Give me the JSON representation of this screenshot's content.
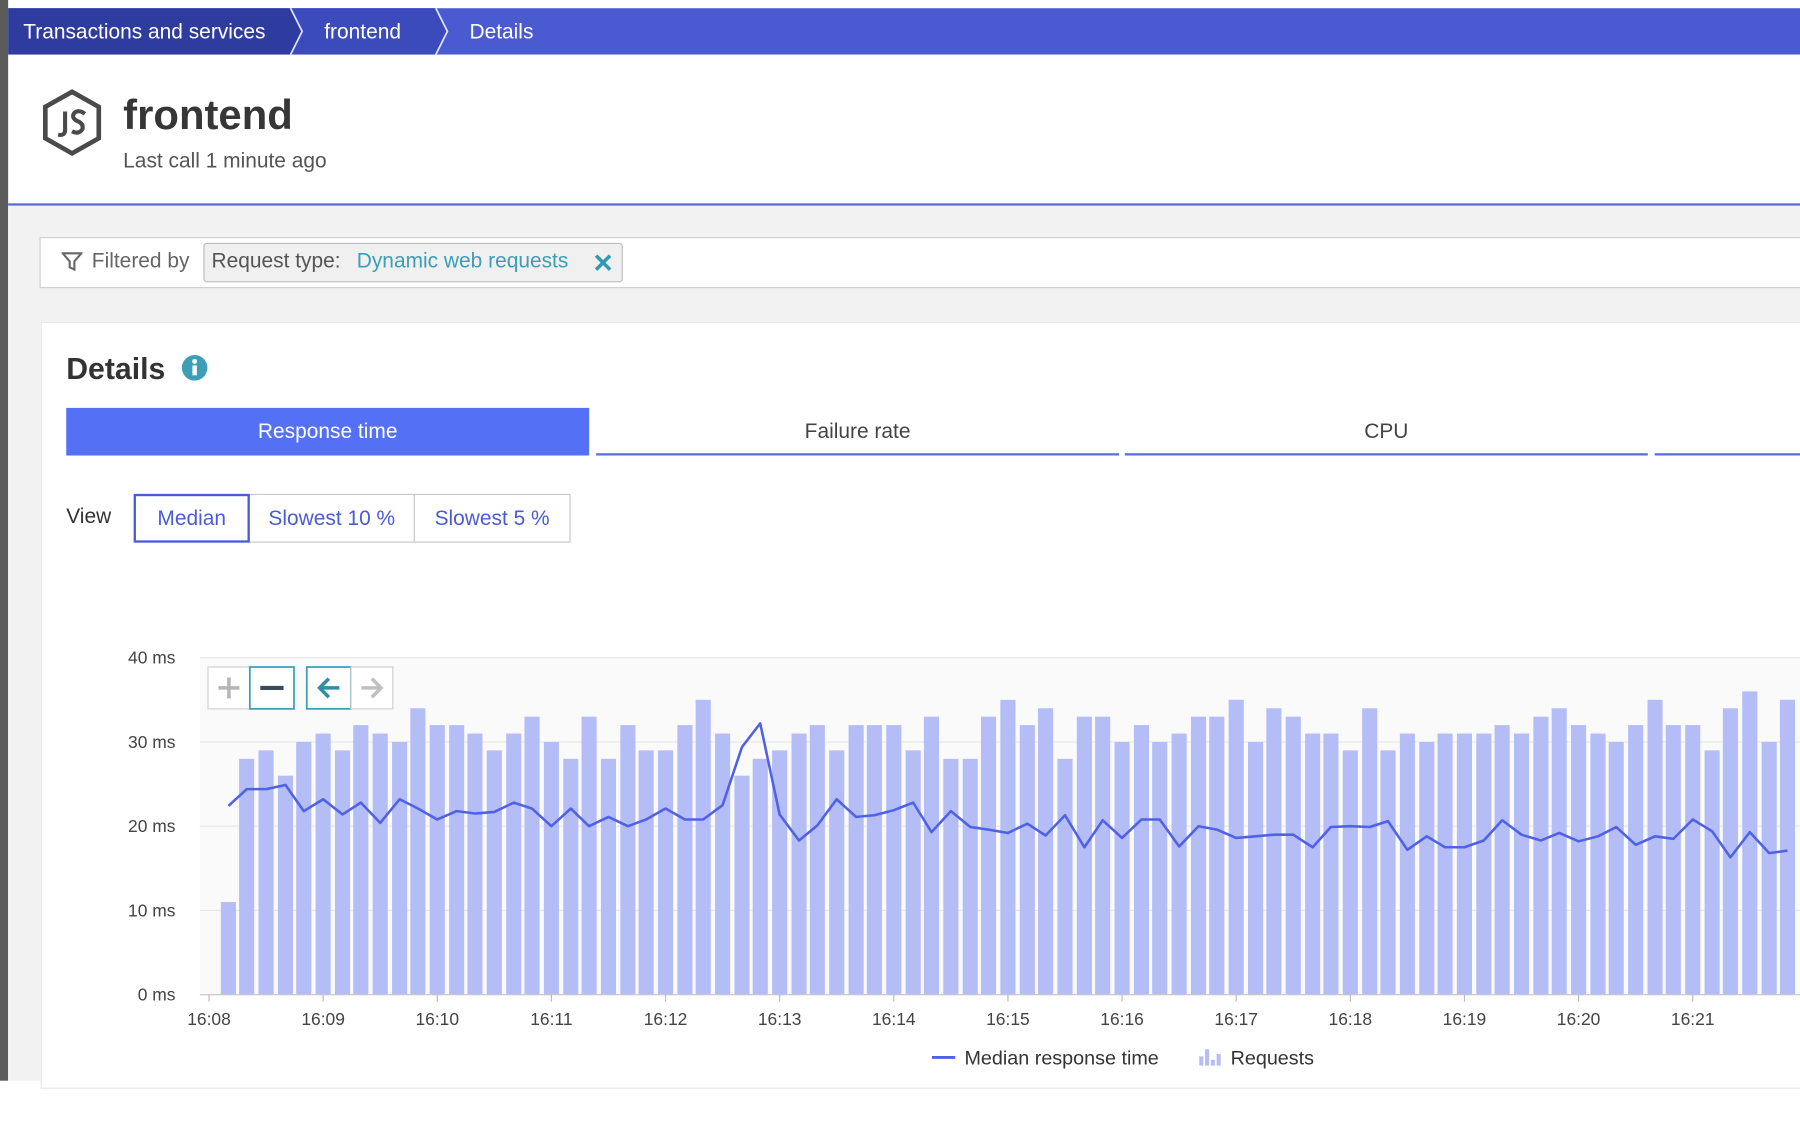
{
  "breadcrumb": [
    "Transactions and services",
    "frontend",
    "Details"
  ],
  "header": {
    "title": "frontend",
    "subtitle": "Last call 1 minute ago"
  },
  "filter": {
    "label": "Filtered by",
    "key": "Request type:",
    "value": "Dynamic web requests"
  },
  "details": {
    "title": "Details",
    "tabs": [
      "Response time",
      "Failure rate",
      "CPU"
    ],
    "view_label": "View",
    "view_options": [
      "Median",
      "Slowest 10 %",
      "Slowest 5 %"
    ]
  },
  "chart_data": {
    "type": "combo",
    "x": [
      0.17,
      0.33,
      0.5,
      0.67,
      0.83,
      1,
      1.17,
      1.33,
      1.5,
      1.67,
      1.83,
      2,
      2.17,
      2.33,
      2.5,
      2.67,
      2.83,
      3,
      3.17,
      3.33,
      3.5,
      3.67,
      3.83,
      4,
      4.17,
      4.33,
      4.5,
      4.67,
      4.83,
      5,
      5.17,
      5.33,
      5.5,
      5.67,
      5.83,
      6,
      6.17,
      6.33,
      6.5,
      6.67,
      6.83,
      7,
      7.17,
      7.33,
      7.5,
      7.67,
      7.83,
      8,
      8.17,
      8.33,
      8.5,
      8.67,
      8.83,
      9,
      9.17,
      9.33,
      9.5,
      9.67,
      9.83,
      10,
      10.17,
      10.33,
      10.5,
      10.67,
      10.83,
      11,
      11.17,
      11.33,
      11.5,
      11.67,
      11.83,
      12,
      12.17,
      12.33,
      12.5,
      12.67,
      12.83,
      13,
      13.17,
      13.33,
      13.5,
      13.67,
      13.83
    ],
    "series": [
      {
        "name": "Median response time",
        "type": "line",
        "color": "#4f62e6",
        "values": [
          22.4,
          24.4,
          24.4,
          24.9,
          21.8,
          23.2,
          21.4,
          22.8,
          20.4,
          23.2,
          22.1,
          20.8,
          21.8,
          21.5,
          21.7,
          22.8,
          22.1,
          20,
          22.1,
          20,
          21.1,
          20,
          20.8,
          22.1,
          20.8,
          20.8,
          22.5,
          29.4,
          32.2,
          21.4,
          18.3,
          20.1,
          23.2,
          21.1,
          21.3,
          21.9,
          22.8,
          19.3,
          21.8,
          19.9,
          19.6,
          19.2,
          20.3,
          18.9,
          21.3,
          17.5,
          20.7,
          18.6,
          20.8,
          20.8,
          17.6,
          20,
          19.6,
          18.6,
          18.8,
          19,
          19,
          17.5,
          19.9,
          20,
          19.9,
          20.6,
          17.2,
          18.8,
          17.5,
          17.5,
          18.3,
          20.7,
          19,
          18.3,
          19.2,
          18.2,
          18.8,
          19.9,
          17.8,
          18.8,
          18.5,
          20.8,
          19.4,
          16.3,
          19.3,
          16.8,
          17.1
        ]
      },
      {
        "name": "Requests",
        "type": "bar",
        "color": "#b4bdf5",
        "values": [
          11,
          28,
          29,
          26,
          30,
          31,
          29,
          32,
          31,
          30,
          34,
          32,
          32,
          31,
          29,
          31,
          33,
          30,
          28,
          33,
          28,
          32,
          29,
          29,
          32,
          35,
          31,
          26,
          28,
          29,
          31,
          32,
          29,
          32,
          32,
          32,
          29,
          33,
          28,
          28,
          33,
          35,
          32,
          34,
          28,
          33,
          33,
          30,
          32,
          30,
          31,
          33,
          33,
          35,
          30,
          34,
          33,
          31,
          31,
          29,
          34,
          29,
          31,
          30,
          31,
          31,
          31,
          32,
          31,
          33,
          34,
          32,
          31,
          30,
          32,
          35,
          32,
          32,
          29,
          34,
          36,
          30,
          35
        ]
      }
    ],
    "xlim": [
      -0.08,
      13.94
    ],
    "xticks": [
      {
        "value": 0,
        "label": "16:08"
      },
      {
        "value": 1,
        "label": "16:09"
      },
      {
        "value": 2,
        "label": "16:10"
      },
      {
        "value": 3,
        "label": "16:11"
      },
      {
        "value": 4,
        "label": "16:12"
      },
      {
        "value": 5,
        "label": "16:13"
      },
      {
        "value": 6,
        "label": "16:14"
      },
      {
        "value": 7,
        "label": "16:15"
      },
      {
        "value": 8,
        "label": "16:16"
      },
      {
        "value": 9,
        "label": "16:17"
      },
      {
        "value": 10,
        "label": "16:18"
      },
      {
        "value": 11,
        "label": "16:19"
      },
      {
        "value": 12,
        "label": "16:20"
      },
      {
        "value": 13,
        "label": "16:21"
      }
    ],
    "ylim": [
      0,
      40
    ],
    "yticks": [
      {
        "value": 0,
        "label": "0 ms"
      },
      {
        "value": 10,
        "label": "10 ms"
      },
      {
        "value": 20,
        "label": "20 ms"
      },
      {
        "value": 30,
        "label": "30 ms"
      },
      {
        "value": 40,
        "label": "40 ms"
      }
    ],
    "grid": true
  }
}
